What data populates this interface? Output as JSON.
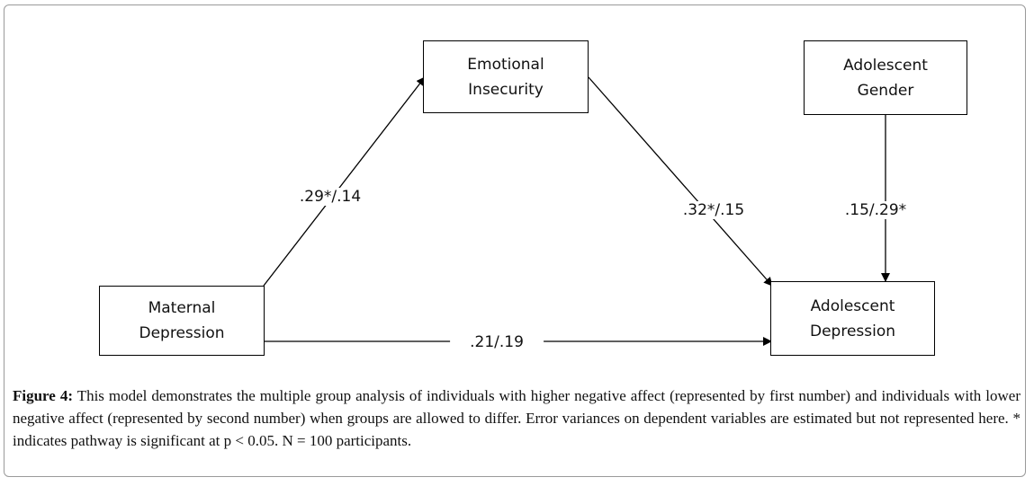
{
  "nodes": {
    "emotional_insecurity": {
      "line1": "Emotional",
      "line2": "Insecurity"
    },
    "adolescent_gender": {
      "line1": "Adolescent",
      "line2": "Gender"
    },
    "maternal_depression": {
      "line1": "Maternal",
      "line2": "Depression"
    },
    "adolescent_depression": {
      "line1": "Adolescent",
      "line2": "Depression"
    }
  },
  "paths": {
    "maternal_to_emotional": ".29*/.14",
    "emotional_to_adolescent": ".32*/.15",
    "gender_to_adolescent": ".15/.29*",
    "maternal_to_adolescent": ".21/.19"
  },
  "caption": {
    "label": "Figure 4:",
    "text": "This model demonstrates the multiple group analysis of individuals with higher negative affect (represented by first number) and individuals with lower negative affect (represented by second number) when groups are allowed to differ. Error variances on dependent variables are estimated but not represented here. * indicates pathway is significant at p < 0.05. N = 100 participants."
  }
}
